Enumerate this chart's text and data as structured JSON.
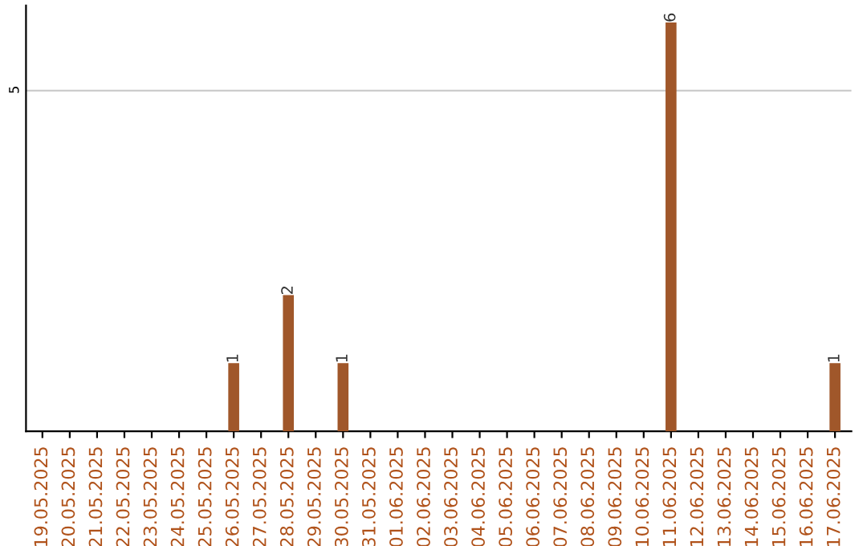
{
  "chart_data": {
    "type": "bar",
    "categories": [
      "19.05.2025",
      "20.05.2025",
      "21.05.2025",
      "22.05.2025",
      "23.05.2025",
      "24.05.2025",
      "25.05.2025",
      "26.05.2025",
      "27.05.2025",
      "28.05.2025",
      "29.05.2025",
      "30.05.2025",
      "31.05.2025",
      "01.06.2025",
      "02.06.2025",
      "03.06.2025",
      "04.06.2025",
      "05.06.2025",
      "06.06.2025",
      "07.06.2025",
      "08.06.2025",
      "09.06.2025",
      "10.06.2025",
      "11.06.2025",
      "12.06.2025",
      "13.06.2025",
      "14.06.2025",
      "15.06.2025",
      "16.06.2025",
      "17.06.2025"
    ],
    "values": [
      0,
      0,
      0,
      0,
      0,
      0,
      0,
      1,
      0,
      2,
      0,
      1,
      0,
      0,
      0,
      0,
      0,
      0,
      0,
      0,
      0,
      0,
      0,
      6,
      0,
      0,
      0,
      0,
      0,
      1
    ],
    "value_labels": [
      null,
      null,
      null,
      null,
      null,
      null,
      null,
      "1",
      null,
      "2",
      null,
      "1",
      null,
      null,
      null,
      null,
      null,
      null,
      null,
      null,
      null,
      null,
      null,
      "6",
      null,
      null,
      null,
      null,
      null,
      "1"
    ],
    "color": "#a0572a",
    "ylim": [
      0,
      6.25
    ],
    "yticks": [
      5
    ],
    "grid": "y"
  }
}
